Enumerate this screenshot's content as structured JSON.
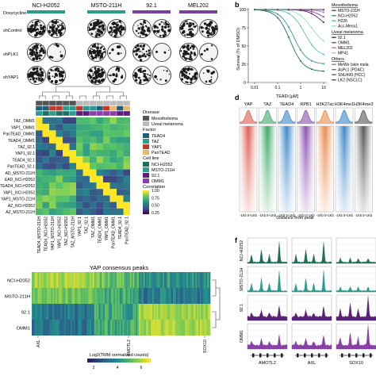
{
  "panel_a": {
    "doxycycline_label": "Doxycycline:",
    "cell_lines": [
      "NCI-H2052",
      "MSTO-211H",
      "92.1",
      "MEL202"
    ],
    "row_labels": [
      "shControl",
      "shPLK1",
      "shYAP1"
    ],
    "bar_colors": [
      "#2e9b8f",
      "#2e9b8f",
      "#7b3f9e",
      "#7b3f9e"
    ]
  },
  "panel_b": {
    "letter": "b",
    "ylabel": "Survival (% of DMSO)",
    "xlabel": "TEADi [μM]",
    "y_ticks": [
      "0",
      "25",
      "50",
      "75",
      "100"
    ],
    "x_ticks": [
      "0.01",
      "0.1",
      "1",
      "10"
    ],
    "legend": {
      "groups": [
        {
          "title": "Mesothelioma",
          "items": [
            {
              "name": "MSTO-211H",
              "color": "#1f6f5c"
            },
            {
              "name": "NCI-H2052",
              "color": "#2e9b8f"
            },
            {
              "name": "H226",
              "color": "#5fbfae"
            },
            {
              "name": "Acc-Meso1",
              "color": "#9adbc9"
            }
          ]
        },
        {
          "title": "Uveal melanoma",
          "items": [
            {
              "name": "92.1",
              "color": "#5a1f7a"
            },
            {
              "name": "OMM1",
              "color": "#8a3fa8"
            },
            {
              "name": "MEL202",
              "color": "#b07acb"
            },
            {
              "name": "MP41",
              "color": "#d2b1e0"
            }
          ]
        },
        {
          "title": "Others",
          "items": [
            {
              "name": "MeWo (skin mela",
              "color": "#888888"
            },
            {
              "name": "AsPc1 (PDAC)",
              "color": "#777777"
            },
            {
              "name": "SNU499 (HCC)",
              "color": "#666666"
            },
            {
              "name": "LK2 (NSCLC)",
              "color": "#555555"
            }
          ]
        }
      ]
    }
  },
  "panel_c": {
    "row_labels": [
      "TAZ_OMM1",
      "YAP1_OMM1",
      "PanTEAD_OMM1",
      "TEAD4_OMM1",
      "TAZ_92.1",
      "YAP1_92.1",
      "TEAD4_92.1",
      "PanTEAD_92.1",
      "AD_MSTO-211H",
      "EAD_NCI-H2052",
      "TEAD4_NCI-H2052",
      "YAP1_NCI-H2052",
      "YAP1_MSTO-211H",
      "AZ_NCI-H2052",
      "AZ_MSTO-211H"
    ],
    "col_labels": [
      "TEAD4_MSTO-211H",
      "TEAD4_NCI-H2052",
      "YAP1_MSTO-211H",
      "YAP1_NCI-H2052",
      "TAZ_NCI-H2052",
      "TAZ_MSTO-211H",
      "YAP1_92.1",
      "TAZ_92.1",
      "TAZ_OMM1",
      "TEAD4_OMM1",
      "YAP1_OMM1",
      "PanTEAD_OMM1",
      "TEAD4_92.1",
      "PanTEAD_92.1"
    ],
    "legend": {
      "disease_title": "Disease",
      "disease": [
        {
          "name": "Mesothelioma",
          "color": "#555555"
        },
        {
          "name": "Uveal melanoma",
          "color": "#bbbbbb"
        }
      ],
      "factor_title": "Factor",
      "factor": [
        {
          "name": "TEAD4",
          "color": "#1f5f7a"
        },
        {
          "name": "TAZ",
          "color": "#2e9b8f"
        },
        {
          "name": "YAP1",
          "color": "#c0392b"
        },
        {
          "name": "PanTEAD",
          "color": "#e8b86d"
        }
      ],
      "cellline_title": "Cell line",
      "cellline": [
        {
          "name": "NCI-H2052",
          "color": "#1f6f5c"
        },
        {
          "name": "MSTO-211H",
          "color": "#2e9b8f"
        },
        {
          "name": "92.1",
          "color": "#5a1f7a"
        },
        {
          "name": "OMM1",
          "color": "#8a3fa8"
        }
      ],
      "corr_title": "Correlation",
      "corr_ticks": [
        "1.00",
        "0.75",
        "0.50",
        "0.25"
      ]
    }
  },
  "panel_bottom_heatmap": {
    "title": "YAP consensus peaks",
    "row_labels": [
      "NCI-H2052",
      "MSTO-211H",
      "92.1",
      "OMM1"
    ],
    "gene_labels": [
      "AXL",
      "AMOTL2",
      "SOX10"
    ],
    "colorbar_label": "Log2(TMM normalized counts)",
    "colorbar_ticks": [
      "2",
      "4",
      "6"
    ]
  },
  "panel_d": {
    "letter": "d",
    "columns": [
      {
        "name": "YAP",
        "color": "#e05a4f"
      },
      {
        "name": "TAZ",
        "color": "#3aa864"
      },
      {
        "name": "TEAD4",
        "color": "#3a86c8"
      },
      {
        "name": "RPB1",
        "color": "#8a4fb0"
      },
      {
        "name": "H3K27ac",
        "color": "#e8894a"
      },
      {
        "name": "H3K4me1",
        "color": "#3a86c8"
      },
      {
        "name": "H3K4me3",
        "color": "#555555"
      }
    ],
    "x_tick_left": "-1Kb",
    "x_tick_mid": "0",
    "x_tick_right": "+1Kb",
    "xlabel": "Distance from peak"
  },
  "panel_f": {
    "letter": "f",
    "row_labels": [
      "NCI-H2052",
      "MSTO-211H",
      "92.1",
      "OMM1"
    ],
    "row_colors": [
      "#1f6f5c",
      "#2e9b8f",
      "#5a1f7a",
      "#8a3fa8"
    ],
    "genes": [
      "AMOTL2",
      "AXL",
      "SOX10"
    ]
  }
}
